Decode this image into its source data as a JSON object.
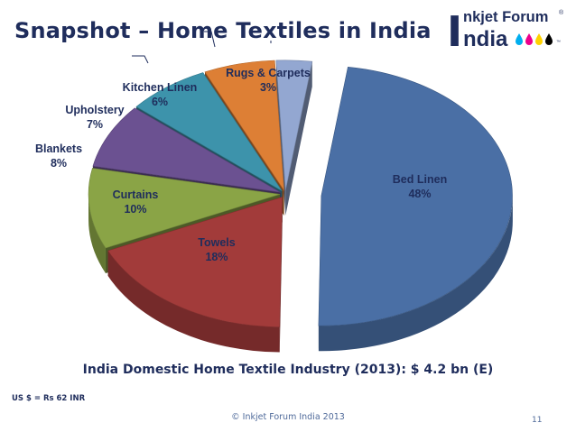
{
  "slide": {
    "title": "Snapshot – Home Textiles in India",
    "subtitle": "India Domestic Home Textile Industry (2013): $ 4.2 bn (E)",
    "fx_note": "US $ = Rs 62 INR",
    "copyright": "© Inkjet Forum India 2013",
    "page_number": "11"
  },
  "logo": {
    "big_letter": "I",
    "line1": "nkjet Forum",
    "registered": "®",
    "line2": "ndia",
    "tm": "™",
    "drop_colors": [
      "#00aeef",
      "#ec008c",
      "#ffd200",
      "#000000"
    ]
  },
  "chart_data": {
    "type": "pie",
    "title": "",
    "categories": [
      "Bed Linen",
      "Towels",
      "Curtains",
      "Blankets",
      "Upholstery",
      "Kitchen Linen",
      "Rugs & Carpets"
    ],
    "values": [
      48,
      18,
      10,
      8,
      7,
      6,
      3
    ],
    "labels": [
      "48%",
      "18%",
      "10%",
      "8%",
      "7%",
      "6%",
      "3%"
    ],
    "colors": [
      "#4a6fa5",
      "#a23b3a",
      "#8aa446",
      "#6b5191",
      "#3d93ab",
      "#dd7f35",
      "#93a7d1"
    ],
    "style": "3D exploded"
  }
}
